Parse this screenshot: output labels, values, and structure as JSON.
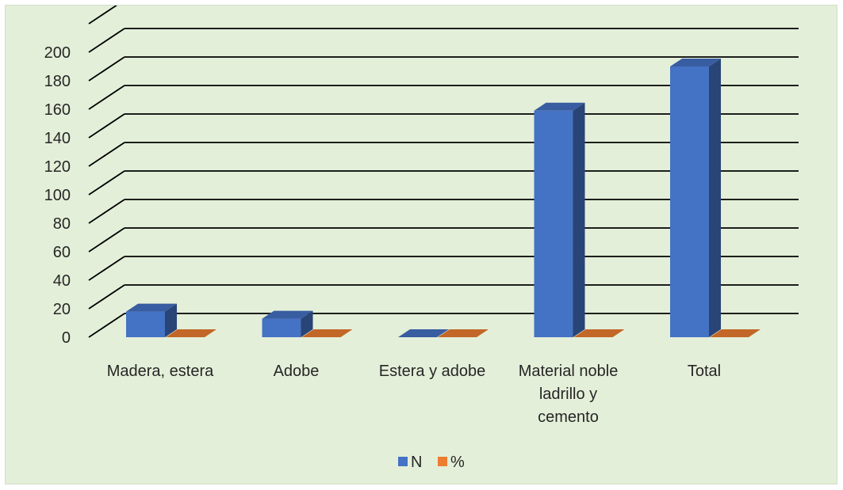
{
  "chart_data": {
    "type": "bar",
    "categories": [
      "Madera, estera",
      "Adobe",
      "Estera y adobe",
      "Material noble ladrillo y cemento",
      "Total"
    ],
    "series": [
      {
        "name": "N",
        "values": [
          18,
          13,
          0,
          159,
          190
        ],
        "color": "#4472c4"
      },
      {
        "name": "%",
        "values": [
          0,
          0,
          0,
          0,
          0
        ],
        "color": "#ed7d31"
      }
    ],
    "yticks": [
      0,
      20,
      40,
      60,
      80,
      100,
      120,
      140,
      160,
      180,
      200
    ],
    "ylim": [
      0,
      220
    ],
    "grid": true,
    "legend_position": "bottom",
    "three_d": true,
    "title": "",
    "xlabel": "",
    "ylabel": ""
  },
  "category_label_lines": [
    [
      "Madera, estera"
    ],
    [
      "Adobe"
    ],
    [
      "Estera y adobe"
    ],
    [
      "Material noble",
      "ladrillo y",
      "cemento"
    ],
    [
      "Total"
    ]
  ],
  "colors": {
    "background": "#e4efd9",
    "gridline": "#000000"
  }
}
